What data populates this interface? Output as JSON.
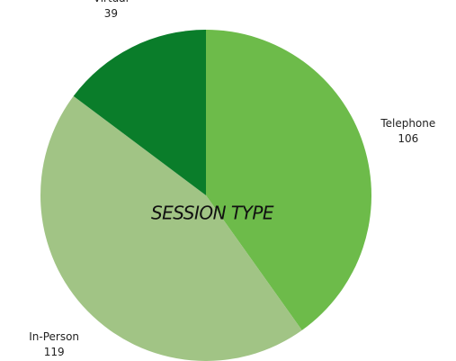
{
  "chart_data": {
    "type": "pie",
    "title": "SESSION TYPE",
    "categories": [
      "Telephone",
      "In-Person",
      "Virtual"
    ],
    "values": [
      106,
      119,
      39
    ],
    "colors": [
      "#6dbb4a",
      "#a1c485",
      "#0a7d2a"
    ]
  }
}
